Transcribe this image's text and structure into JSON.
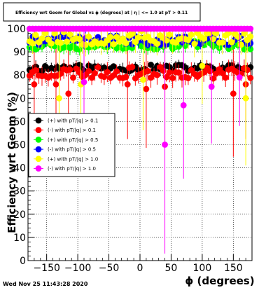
{
  "chart_data": {
    "type": "scatter",
    "title": "Efficiency wrt Geom for Global vs ϕ (degrees) at | η | <= 1.0 at pT > 0.11",
    "xlabel": "ϕ (degrees)",
    "ylabel": "Efficiency wrt Geom (%)",
    "xlim": [
      -180,
      180
    ],
    "ylim": [
      0,
      100
    ],
    "x_ticks": [
      -150,
      -100,
      -50,
      0,
      50,
      100,
      150
    ],
    "x_tick_labels": [
      "−150",
      "−100",
      "−50",
      "0",
      "50",
      "100",
      "150"
    ],
    "y_ticks": [
      0,
      10,
      20,
      30,
      40,
      50,
      60,
      70,
      80,
      90,
      100
    ],
    "y_tick_labels": [
      "0",
      "10",
      "20",
      "30",
      "40",
      "50",
      "60",
      "70",
      "80",
      "90",
      "100"
    ],
    "grid": true,
    "legend_position": "left-middle",
    "series": [
      {
        "name": "(+) with pT/|q| > 0.1",
        "color": "#000000",
        "base": 83,
        "spread": 1.5,
        "err": 2,
        "seed": 11,
        "outliers": []
      },
      {
        "name": "(-) with pT/|q| > 0.1",
        "color": "#ff0000",
        "base": 81,
        "spread": 2.5,
        "err": 3,
        "seed": 23,
        "outliers": [
          [
            -170,
            76
          ],
          [
            -135,
            76
          ],
          [
            -115,
            72
          ],
          [
            -20,
            76
          ],
          [
            10,
            74
          ],
          [
            40,
            75
          ],
          [
            150,
            72
          ],
          [
            170,
            76
          ]
        ]
      },
      {
        "name": "(+) with pT/|q| > 0.5",
        "color": "#00ff00",
        "base": 93,
        "spread": 2,
        "err": 2,
        "seed": 37,
        "outliers": []
      },
      {
        "name": "(-) with pT/|q| > 0.5",
        "color": "#0000ff",
        "base": 95,
        "spread": 2,
        "err": 2,
        "seed": 41,
        "outliers": []
      },
      {
        "name": "(+) with pT/|q| > 1.0",
        "color": "#ffff00",
        "base": 96,
        "spread": 3,
        "err": 4,
        "seed": 53,
        "outliers": [
          [
            -130,
            70
          ],
          [
            -95,
            76
          ],
          [
            5,
            78
          ],
          [
            100,
            84
          ],
          [
            170,
            70
          ]
        ]
      },
      {
        "name": "(-) with pT/|q| > 1.0",
        "color": "#ff00ff",
        "base": 100,
        "spread": 0,
        "err": 0,
        "seed": 67,
        "outliers": [
          [
            -90,
            77
          ],
          [
            40,
            50
          ],
          [
            70,
            67
          ],
          [
            115,
            75
          ],
          [
            160,
            79
          ]
        ]
      }
    ]
  },
  "timestamp": "Wed Nov 25 11:43:28 2020"
}
